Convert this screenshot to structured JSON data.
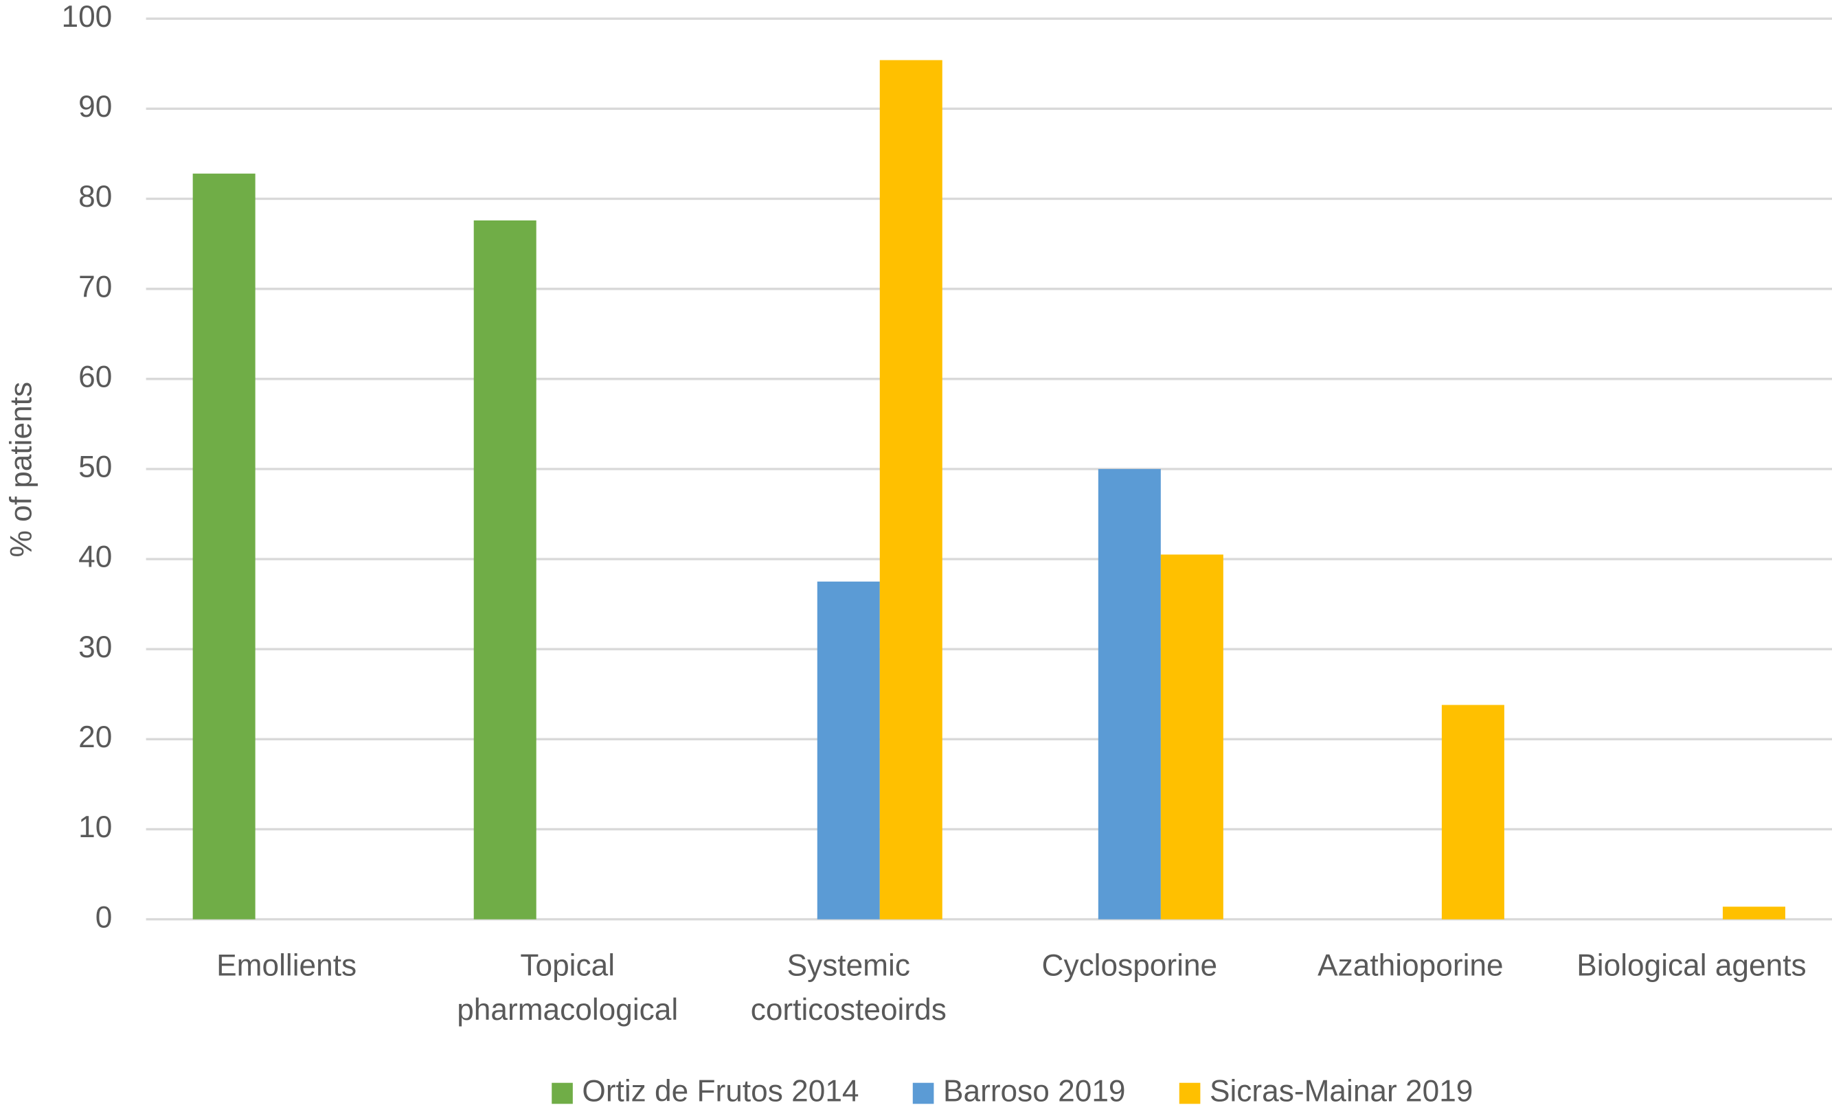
{
  "chart_data": {
    "type": "bar",
    "y_label": "% of patients",
    "categories": [
      "Emollients",
      "Topical\npharmacological",
      "Systemic\ncorticosteoirds",
      "Cyclosporine",
      "Azathioporine",
      "Biological agents"
    ],
    "series": [
      {
        "name": "Ortiz de Frutos 2014",
        "color": "#70ad47",
        "values": [
          82.8,
          77.6,
          null,
          null,
          null,
          null
        ]
      },
      {
        "name": "Barroso 2019",
        "color": "#5b9bd5",
        "values": [
          null,
          null,
          37.5,
          50,
          null,
          null
        ]
      },
      {
        "name": "Sicras-Mainar 2019",
        "color": "#ffc000",
        "values": [
          null,
          null,
          95.4,
          40.5,
          23.8,
          1.4
        ]
      }
    ],
    "ylim": [
      0,
      100
    ],
    "yticks": [
      0,
      10,
      20,
      30,
      40,
      50,
      60,
      70,
      80,
      90,
      100
    ],
    "grid": true,
    "legend": "bottom"
  }
}
